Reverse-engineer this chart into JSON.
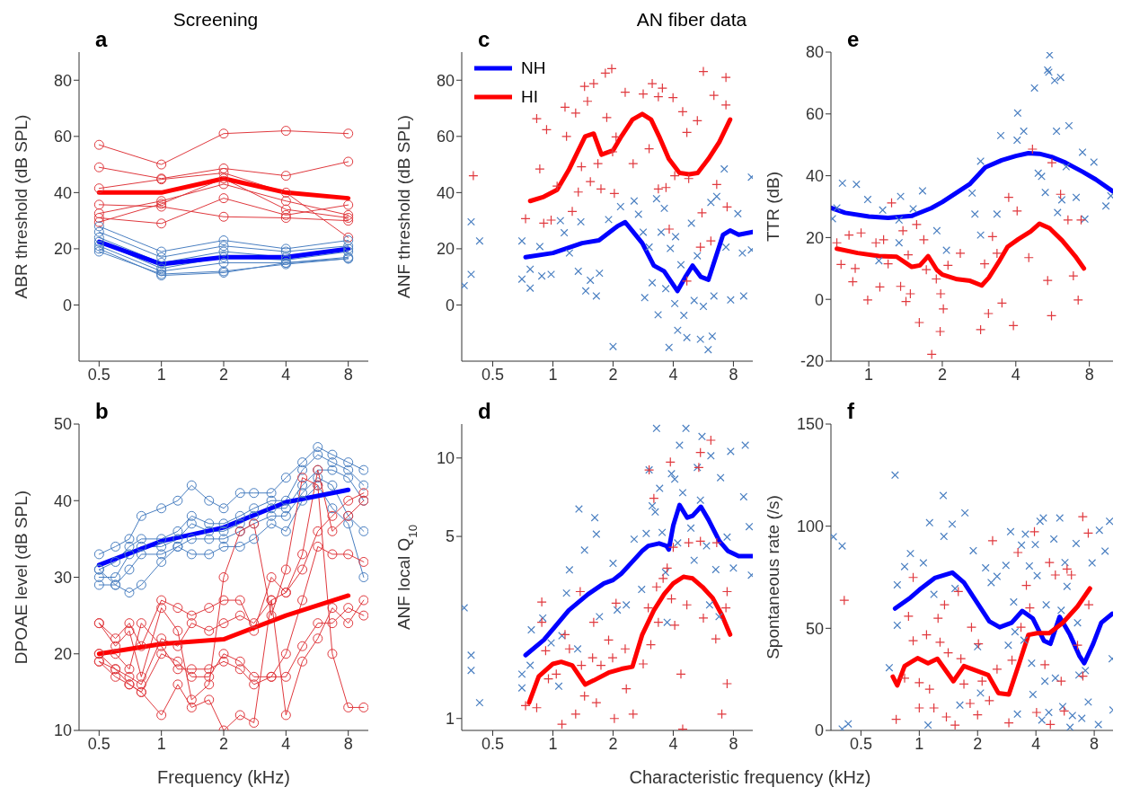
{
  "chart_data": [
    {
      "type": "line",
      "title": "a",
      "annotations": [
        "Screening"
      ],
      "ylabel": "ABR threshold (dB SPL)",
      "log": "x",
      "marker": "circle",
      "xlim": [
        0.4,
        10
      ],
      "xticks": [
        0.5,
        1,
        2,
        4,
        8
      ],
      "ylim": [
        -20,
        90
      ],
      "yticks": [
        0,
        20,
        40,
        60,
        80
      ],
      "x": [
        0.5,
        1,
        2,
        4,
        8
      ],
      "series": [
        {
          "color": "#e0393e",
          "values": [
            57,
            50,
            61,
            62,
            61
          ]
        },
        {
          "color": "#e0393e",
          "values": [
            49,
            45,
            48.6,
            46,
            51
          ]
        },
        {
          "color": "#e0393e",
          "values": [
            41.5,
            44.7,
            47,
            40,
            24
          ]
        },
        {
          "color": "#e0393e",
          "values": [
            35.7,
            35,
            31.4,
            31,
            30
          ]
        },
        {
          "color": "#e0393e",
          "values": [
            32.6,
            37,
            43,
            37,
            32
          ]
        },
        {
          "color": "#e0393e",
          "values": [
            31,
            29,
            38,
            32,
            35.6
          ]
        },
        {
          "color": "#e0393e",
          "values": [
            29.5,
            36,
            45,
            34,
            31
          ]
        },
        {
          "color": "#4a7fc1",
          "values": [
            28,
            19,
            23,
            20,
            23
          ]
        },
        {
          "color": "#4a7fc1",
          "values": [
            26,
            17,
            21,
            19,
            21
          ]
        },
        {
          "color": "#4a7fc1",
          "values": [
            24,
            15,
            19,
            17,
            20
          ]
        },
        {
          "color": "#4a7fc1",
          "values": [
            22.5,
            13,
            17,
            16,
            19
          ]
        },
        {
          "color": "#4a7fc1",
          "values": [
            21,
            12,
            15,
            15,
            17
          ]
        },
        {
          "color": "#4a7fc1",
          "values": [
            19,
            11,
            12,
            14.5,
            16.5
          ]
        },
        {
          "color": "#4a7fc1",
          "values": [
            20,
            10.5,
            11.5,
            15,
            16.5
          ]
        },
        {
          "color": "#ff0000",
          "marker": "none",
          "values": [
            40,
            40,
            45,
            40,
            38
          ]
        },
        {
          "color": "#0000ff",
          "marker": "none",
          "values": [
            22.5,
            14.5,
            17,
            17,
            20
          ]
        }
      ]
    },
    {
      "type": "line",
      "title": "b",
      "xlabel": "Frequency (kHz)",
      "ylabel": "DPOAE level (dB SPL)",
      "log": "x",
      "marker": "circle",
      "xlim": [
        0.4,
        10
      ],
      "xticks": [
        0.5,
        1,
        2,
        4,
        8
      ],
      "ylim": [
        10,
        50
      ],
      "yticks": [
        10,
        20,
        30,
        40,
        50
      ],
      "x": [
        0.5,
        0.6,
        0.7,
        0.8,
        1,
        1.2,
        1.4,
        1.7,
        2,
        2.4,
        2.8,
        3.4,
        4,
        4.8,
        5.7,
        6.7,
        8,
        9.5
      ],
      "series": [
        {
          "color": "#4a7fc1",
          "values": [
            33,
            34,
            35,
            38,
            39,
            40,
            42,
            40,
            39,
            41,
            41,
            41,
            43,
            45,
            47,
            46,
            45,
            44
          ]
        },
        {
          "color": "#4a7fc1",
          "values": [
            31,
            32,
            34,
            35,
            35,
            36,
            38,
            37,
            37,
            38,
            39,
            40,
            40,
            44,
            46,
            45,
            44,
            42
          ]
        },
        {
          "color": "#4a7fc1",
          "values": [
            30,
            30,
            33,
            34,
            34,
            35,
            37,
            36,
            36,
            37,
            38,
            39,
            39,
            42,
            44,
            44,
            43,
            40
          ]
        },
        {
          "color": "#4a7fc1",
          "values": [
            29,
            29,
            31,
            33,
            33,
            34,
            35,
            35,
            35,
            36,
            37,
            38,
            38,
            41,
            43,
            42,
            38,
            36
          ]
        },
        {
          "color": "#4a7fc1",
          "values": [
            31,
            29,
            28,
            29,
            32,
            34,
            33,
            33,
            34,
            34,
            35,
            37,
            36,
            40,
            42,
            39,
            37,
            30
          ]
        },
        {
          "color": "#e0393e",
          "values": [
            24,
            22,
            24,
            21,
            27,
            26,
            25,
            26,
            27,
            27,
            23,
            30,
            28,
            33,
            44,
            36,
            38,
            40
          ]
        },
        {
          "color": "#e0393e",
          "values": [
            20,
            18,
            17,
            16,
            22,
            21,
            24,
            23,
            24,
            25,
            24,
            27,
            28,
            31,
            36,
            38,
            40,
            41
          ]
        },
        {
          "color": "#e0393e",
          "values": [
            19,
            17,
            16,
            15,
            20,
            19,
            17,
            17,
            20,
            19,
            17,
            17,
            20,
            27,
            34,
            33,
            33,
            32
          ]
        },
        {
          "color": "#e0393e",
          "values": [
            20,
            20,
            18,
            24,
            21,
            18,
            18,
            18,
            19,
            18,
            16,
            17,
            17,
            21,
            24,
            24,
            26,
            25
          ]
        },
        {
          "color": "#e0393e",
          "values": [
            19,
            18,
            16,
            15,
            12,
            16,
            13,
            14,
            10,
            12,
            11,
            27,
            12,
            19,
            22,
            26,
            24,
            27
          ]
        },
        {
          "color": "#e0393e",
          "values": [
            24,
            21,
            23,
            17,
            26,
            23,
            14,
            16,
            30,
            36,
            37,
            25,
            31,
            43,
            42,
            20,
            13,
            13
          ]
        },
        {
          "color": "#0000ff",
          "marker": "none",
          "x": [
            0.5,
            1,
            2,
            4,
            8
          ],
          "values": [
            31.6,
            34.7,
            36.5,
            39.8,
            41.4
          ]
        },
        {
          "color": "#ff0000",
          "marker": "none",
          "x": [
            0.5,
            1,
            2,
            4,
            8
          ],
          "values": [
            20,
            21.3,
            21.9,
            25,
            27.6
          ]
        }
      ]
    },
    {
      "type": "scatter",
      "title": "c",
      "annotations": [
        "AN fiber data"
      ],
      "ylabel": "ANF threshold (dB SPL)",
      "log": "x",
      "legend": "top left",
      "xlim": [
        0.35,
        10
      ],
      "xticks": [
        0.5,
        1,
        2,
        4,
        8
      ],
      "ylim": [
        -20,
        90
      ],
      "yticks": [
        0,
        20,
        40,
        60,
        80
      ],
      "series": [
        {
          "color": "#4a7fc1",
          "marker": "x",
          "x": [
            0.36,
            0.39,
            0.39,
            0.43,
            0.7,
            0.7,
            0.77,
            0.77,
            0.86,
            0.88,
            0.98,
            1.09,
            1.14,
            1.21,
            1.34,
            1.38,
            1.46,
            1.54,
            1.65,
            1.71,
            1.9,
            2.0,
            2.18,
            2.55,
            2.68,
            2.83,
            2.88,
            3.03,
            3.14,
            3.3,
            3.36,
            3.48,
            3.61,
            3.67,
            3.81,
            3.87,
            4.07,
            4.11,
            4.21,
            4.37,
            4.52,
            4.68,
            4.93,
            5.09,
            5.28,
            5.47,
            5.66,
            5.98,
            6.17,
            6.27,
            6.39,
            6.6,
            7.2,
            7.34,
            7.75,
            8.42,
            8.87,
            9.0,
            9.84,
            9.84
          ],
          "values": [
            6.9,
            29.6,
            10.9,
            22.8,
            22.8,
            9.2,
            12.7,
            6,
            20.8,
            10.3,
            10.9,
            30,
            25.7,
            18.5,
            12,
            29.6,
            5,
            8.8,
            3.2,
            11.3,
            30.4,
            -14.8,
            35,
            37,
            32.3,
            25.9,
            2.6,
            20.6,
            7.9,
            37.8,
            -3.5,
            25.9,
            34.4,
            5.8,
            -15.1,
            20.1,
            0.5,
            24.3,
            -9,
            14.3,
            -3.7,
            -11.6,
            29.1,
            1.6,
            17.5,
            -12.2,
            -0.5,
            -15.9,
            36.5,
            -11.1,
            3.2,
            38.6,
            48.4,
            20.6,
            1.8,
            32.5,
            18.5,
            3.2,
            45.5,
            19.6
          ]
        },
        {
          "color": "#e0393e",
          "marker": "cross",
          "x": [
            0.4,
            0.73,
            0.83,
            0.86,
            0.9,
            0.93,
            0.98,
            1.05,
            1.15,
            1.17,
            1.25,
            1.3,
            1.34,
            1.39,
            1.44,
            1.49,
            1.54,
            1.6,
            1.68,
            1.74,
            1.83,
            1.86,
            1.97,
            1.99,
            2.03,
            2.07,
            2.3,
            2.52,
            2.83,
            3.03,
            3.14,
            3.37,
            3.37,
            3.53,
            3.68,
            3.82,
            3.99,
            4.07,
            4.46,
            4.68,
            4.68,
            4.78,
            5.28,
            5.47,
            5.57,
            5.66,
            6.17,
            6.39,
            6.6,
            7.34,
            7.34,
            7.44
          ],
          "values": [
            46,
            30.7,
            66.3,
            48.4,
            29.1,
            62.4,
            30.2,
            42.3,
            70.4,
            60,
            33.3,
            68.3,
            40.2,
            49.2,
            77.8,
            72.5,
            43.9,
            78.8,
            50.3,
            41.3,
            82.5,
            66.7,
            84.1,
            54.5,
            39.7,
            59.8,
            75.7,
            50.3,
            75.1,
            55.6,
            78.8,
            74.1,
            41.3,
            77.2,
            41.8,
            27,
            73.8,
            46,
            68.8,
            61.4,
            8.5,
            45,
            65.6,
            20.6,
            32.8,
            83.1,
            22.8,
            74.6,
            42.9,
            81,
            71.2,
            34.9
          ]
        },
        {
          "type": "line",
          "name": "NH",
          "color": "#0000ff",
          "x": [
            0.73,
            1,
            1.4,
            1.7,
            2.1,
            2.3,
            2.8,
            3.2,
            3.6,
            4.2,
            4.6,
            5.0,
            5.5,
            6.0,
            7.1,
            7.7,
            8.5,
            10
          ],
          "values": [
            17,
            18.5,
            22,
            23,
            28,
            29.5,
            22,
            14,
            12,
            5,
            10,
            14,
            10,
            9,
            25,
            26.5,
            25,
            26
          ]
        },
        {
          "type": "line",
          "name": "HI",
          "color": "#ff0000",
          "x": [
            0.77,
            0.9,
            1.05,
            1.2,
            1.45,
            1.6,
            1.75,
            2.0,
            2.2,
            2.5,
            2.8,
            3.1,
            3.4,
            3.8,
            4.3,
            4.8,
            5.3,
            6.0,
            6.8,
            7.7
          ],
          "values": [
            37,
            38.5,
            41,
            48,
            60,
            61,
            53.5,
            55,
            60,
            66,
            68,
            66,
            60,
            52,
            47,
            46.5,
            47,
            52,
            58,
            66
          ]
        }
      ]
    },
    {
      "type": "scatter",
      "title": "d",
      "xlabel": "Characteristic frequency (kHz)",
      "ylabel": "ANF local Q$_{10}$",
      "log": "xy",
      "xlim": [
        0.35,
        10
      ],
      "xticks": [
        0.5,
        1,
        2,
        4,
        8
      ],
      "ylim": [
        0.9,
        13.5
      ],
      "yticks": [
        1,
        5,
        10
      ],
      "series": [
        {
          "color": "#4a7fc1",
          "marker": "x",
          "x": [
            0.36,
            0.39,
            0.39,
            0.43,
            0.7,
            0.7,
            0.77,
            0.78,
            0.89,
            0.98,
            1.07,
            1.11,
            1.17,
            1.21,
            1.33,
            1.35,
            1.44,
            1.62,
            1.65,
            1.71,
            2.0,
            2.1,
            2.33,
            2.55,
            2.78,
            2.93,
            3.03,
            3.14,
            3.25,
            3.3,
            3.42,
            3.52,
            3.66,
            3.73,
            3.92,
            4.07,
            4.21,
            4.3,
            4.46,
            4.63,
            4.9,
            5.09,
            5.28,
            5.47,
            5.57,
            5.87,
            6.08,
            6.17,
            6.53,
            6.78,
            6.9,
            7.44,
            7.75,
            8.0,
            9.0,
            9.17,
            9.6,
            9.84
          ],
          "values": [
            2.66,
            1.75,
            1.53,
            1.15,
            1.48,
            1.31,
            1.6,
            2.19,
            2.43,
            1.95,
            1.33,
            2.08,
            3.03,
            3.72,
            1.85,
            6.37,
            4.43,
            5.9,
            5.1,
            2.46,
            3.94,
            2.61,
            2.73,
            4.88,
            3.13,
            5.13,
            9.0,
            6.55,
            6.21,
            13,
            7.65,
            5.18,
            3.64,
            2.34,
            8.7,
            8.3,
            4.72,
            11.2,
            7.36,
            13,
            5.38,
            4.05,
            9.2,
            6.89,
            12.1,
            4.6,
            2.73,
            10.2,
            3.73,
            2.46,
            8.4,
            4.97,
            10.6,
            3.78,
            7.1,
            11.2,
            5.45,
            3.55
          ]
        },
        {
          "color": "#e0393e",
          "marker": "cross",
          "x": [
            0.73,
            0.83,
            0.88,
            0.88,
            0.92,
            0.95,
            1.04,
            1.11,
            1.15,
            1.21,
            1.3,
            1.37,
            1.39,
            1.44,
            1.58,
            1.6,
            1.65,
            1.74,
            1.9,
            1.99,
            2.03,
            2.07,
            2.3,
            2.33,
            2.52,
            2.83,
            3.0,
            3.03,
            3.09,
            3.2,
            3.3,
            3.37,
            3.56,
            3.73,
            3.87,
            3.92,
            4.0,
            4.07,
            4.37,
            4.46,
            4.68,
            4.78,
            5.37,
            5.47,
            5.47,
            5.66,
            6.17,
            6.53,
            6.6,
            7.0,
            7.34,
            7.44,
            7.44
          ],
          "values": [
            1.12,
            1.1,
            2.8,
            2.34,
            1.82,
            1.42,
            1.48,
            0.95,
            2.1,
            1.85,
            1.04,
            3.07,
            1.6,
            1.22,
            1.71,
            2.34,
            1.15,
            1.6,
            2.0,
            1.71,
            1.0,
            2.77,
            1.85,
            1.3,
            1.04,
            1.62,
            2.66,
            9.0,
            1.92,
            7.0,
            3.2,
            2.34,
            3.45,
            3.78,
            9.65,
            2.88,
            4.54,
            2.28,
            1.48,
            0.91,
            2.73,
            4.73,
            9.2,
            10.5,
            4.79,
            2.43,
            11.7,
            2.02,
            4.73,
            1.04,
            2.66,
            3.07,
            1.36
          ]
        },
        {
          "type": "line",
          "color": "#0000ff",
          "x": [
            0.73,
            0.9,
            1.0,
            1.2,
            1.5,
            1.8,
            2.0,
            2.2,
            2.5,
            2.8,
            3.0,
            3.4,
            3.7,
            3.8,
            4.0,
            4.3,
            4.7,
            5.0,
            5.5,
            6.0,
            6.8,
            7.5,
            8.5,
            10
          ],
          "values": [
            1.75,
            2.0,
            2.2,
            2.6,
            3.0,
            3.3,
            3.4,
            3.6,
            4.0,
            4.4,
            4.6,
            4.7,
            4.6,
            4.45,
            5.5,
            6.6,
            5.9,
            6.0,
            6.5,
            5.8,
            4.8,
            4.4,
            4.2,
            4.2
          ]
        },
        {
          "type": "line",
          "color": "#ff0000",
          "x": [
            0.76,
            0.85,
            1.0,
            1.1,
            1.25,
            1.45,
            1.6,
            1.9,
            2.2,
            2.5,
            2.8,
            3.2,
            3.6,
            4.0,
            4.5,
            5.0,
            5.6,
            6.3,
            7.0,
            7.7
          ],
          "values": [
            1.15,
            1.45,
            1.62,
            1.65,
            1.6,
            1.35,
            1.4,
            1.5,
            1.55,
            1.58,
            2.1,
            2.6,
            3.0,
            3.3,
            3.5,
            3.45,
            3.2,
            2.9,
            2.5,
            2.1
          ]
        }
      ]
    },
    {
      "type": "scatter",
      "title": "e",
      "ylabel": "TTR (dB)",
      "log": "x",
      "xlim": [
        0.7,
        10
      ],
      "xticks": [
        1,
        2,
        4,
        8
      ],
      "ylim": [
        -20,
        80
      ],
      "yticks": [
        -20,
        0,
        20,
        40,
        60,
        80
      ],
      "series": [
        {
          "color": "#4a7fc1",
          "marker": "x",
          "x": [
            0.71,
            0.74,
            0.78,
            0.89,
            0.99,
            1.1,
            1.14,
            1.33,
            1.35,
            1.33,
            1.52,
            1.66,
            1.9,
            2.08,
            2.65,
            2.72,
            2.87,
            2.87,
            3.35,
            3.47,
            4.07,
            4.05,
            4.31,
            4.77,
            4.94,
            5.1,
            5.28,
            5.4,
            5.5,
            5.46,
            5.77,
            5.87,
            5.93,
            6.1,
            6.17,
            6.43,
            6.6,
            7.07,
            7.5,
            7.67,
            8.35,
            9.35,
            9.8
          ],
          "values": [
            26.1,
            29.6,
            37.6,
            37.2,
            32.3,
            12.5,
            28.9,
            25.7,
            33.3,
            18.3,
            29.3,
            35.1,
            22.2,
            15.9,
            34.4,
            27.6,
            20.8,
            44.7,
            27.6,
            53,
            60.3,
            51.5,
            54.4,
            68.4,
            40.8,
            39.8,
            34.6,
            74.2,
            79.1,
            73.5,
            70.8,
            54.4,
            28.1,
            71.8,
            32.2,
            42.9,
            56.2,
            33,
            47.6,
            26,
            44.4,
            30.2,
            33.5
          ]
        },
        {
          "color": "#e0393e",
          "marker": "cross",
          "x": [
            0.74,
            0.77,
            0.83,
            0.86,
            0.88,
            0.93,
            0.99,
            1.07,
            1.11,
            1.15,
            1.2,
            1.24,
            1.35,
            1.38,
            1.42,
            1.45,
            1.48,
            1.57,
            1.61,
            1.68,
            1.72,
            1.81,
            1.89,
            1.96,
            1.97,
            2.02,
            2.11,
            2.37,
            2.87,
            2.98,
            3.09,
            3.21,
            3.35,
            3.51,
            3.74,
            3.91,
            4.05,
            4.52,
            4.68,
            5.4,
            5.6,
            5.62,
            6.1,
            6.54,
            6.88,
            7.2,
            7.4
          ],
          "values": [
            18.3,
            11.3,
            20.8,
            5.7,
            10,
            21.5,
            -0.2,
            18.3,
            4,
            19.3,
            11.5,
            31.2,
            4.2,
            22.2,
            -0.7,
            14.4,
            1.8,
            24.2,
            -7.5,
            19.3,
            9.6,
            -17.8,
            6.6,
            -10.4,
            1.8,
            -3.1,
            11,
            14.9,
            -9.8,
            11.5,
            -4.6,
            20.3,
            14.9,
            -1.2,
            33,
            -8.5,
            28.6,
            13.5,
            48.6,
            6.1,
            -5.3,
            44.2,
            34,
            25.7,
            7.6,
            -0.2,
            25.7
          ]
        },
        {
          "type": "line",
          "color": "#0000ff",
          "x": [
            0.7,
            0.8,
            1.0,
            1.2,
            1.5,
            1.8,
            2.0,
            2.6,
            3.0,
            3.5,
            4.0,
            4.5,
            5.0,
            5.6,
            6.4,
            7.5,
            8.5,
            10
          ],
          "values": [
            29.6,
            28,
            26.8,
            26.4,
            27,
            29.5,
            31.5,
            37.4,
            42.7,
            45,
            46.4,
            47.3,
            47.1,
            46.1,
            44.2,
            41.3,
            38.8,
            34.9
          ]
        },
        {
          "type": "line",
          "color": "#ff0000",
          "x": [
            0.74,
            0.9,
            1.1,
            1.3,
            1.5,
            1.62,
            1.75,
            1.9,
            2.0,
            2.3,
            2.6,
            2.9,
            3.1,
            3.4,
            3.7,
            4.1,
            4.6,
            5.0,
            5.5,
            6.2,
            7.0,
            7.6
          ],
          "values": [
            16.4,
            15,
            14,
            13.8,
            10.5,
            11,
            14,
            9.5,
            8,
            6.5,
            6,
            4.5,
            7,
            12,
            17,
            19.5,
            22,
            24.5,
            23,
            19,
            14,
            10
          ]
        }
      ]
    },
    {
      "type": "scatter",
      "title": "f",
      "ylabel": "Spontaneous rate (/s)",
      "log": "x",
      "xlim": [
        0.35,
        10
      ],
      "xticks": [
        0.5,
        1,
        2,
        4,
        8
      ],
      "ylim": [
        0,
        150
      ],
      "yticks": [
        0,
        50,
        100,
        150
      ],
      "series": [
        {
          "color": "#4a7fc1",
          "marker": "x",
          "x": [
            0.36,
            0.4,
            0.4,
            0.43,
            0.7,
            0.75,
            0.77,
            0.77,
            0.84,
            0.9,
            1.05,
            1.11,
            1.13,
            1.19,
            1.33,
            1.34,
            1.48,
            1.53,
            1.62,
            1.72,
            1.9,
            2.0,
            2.07,
            2.2,
            2.35,
            2.52,
            2.8,
            2.88,
            2.96,
            3.07,
            3.12,
            3.21,
            3.37,
            3.47,
            3.53,
            3.7,
            3.8,
            3.86,
            3.97,
            4.06,
            4.2,
            4.29,
            4.37,
            4.45,
            4.52,
            4.66,
            4.95,
            5.04,
            5.31,
            5.4,
            5.5,
            5.65,
            5.79,
            6.0,
            6.17,
            6.45,
            6.56,
            6.67,
            6.9,
            7.2,
            7.45,
            7.8,
            8.4,
            8.5,
            9.1,
            9.6,
            9.9,
            10
          ],
          "values": [
            94.8,
            90.3,
            0.7,
            3.2,
            30.7,
            125,
            51.5,
            71.3,
            80.2,
            86.6,
            82,
            2.6,
            101.7,
            66.6,
            115,
            95,
            101,
            69.5,
            12.4,
            106.5,
            88,
            41,
            18.3,
            79.6,
            72.4,
            75.4,
            80.8,
            41.7,
            97.3,
            62.9,
            48.3,
            8,
            90.7,
            44.2,
            96.1,
            80.5,
            32.9,
            17.6,
            91,
            75.8,
            102.4,
            5.1,
            104,
            24.1,
            61.5,
            8.8,
            93.7,
            25.6,
            104,
            58.8,
            11.7,
            82.2,
            70.5,
            1.5,
            7.3,
            91.5,
            52.7,
            27.1,
            5.9,
            29.3,
            13.9,
            82,
            2.9,
            98,
            87.8,
            102.4,
            35.1,
            10
          ]
        },
        {
          "color": "#e0393e",
          "marker": "cross",
          "x": [
            0.41,
            0.76,
            0.84,
            0.88,
            0.93,
            0.93,
            1.0,
            1.0,
            1.09,
            1.13,
            1.19,
            1.25,
            1.28,
            1.35,
            1.38,
            1.41,
            1.53,
            1.59,
            1.64,
            1.7,
            1.83,
            1.86,
            2.0,
            2.02,
            2.11,
            2.3,
            2.39,
            2.52,
            2.9,
            3.01,
            3.23,
            3.35,
            3.57,
            3.72,
            3.93,
            4.03,
            4.45,
            4.7,
            4.75,
            5.04,
            5.4,
            5.6,
            5.79,
            6.1,
            6.56,
            6.98,
            6.99,
            7.45,
            7.5
          ],
          "values": [
            63.7,
            5.4,
            25.6,
            55.9,
            74.9,
            43.9,
            23.4,
            11,
            46.8,
            20.2,
            11,
            54.9,
            43.2,
            61.5,
            6.6,
            38,
            2.6,
            68,
            35.1,
            22.7,
            13.2,
            50.5,
            7.6,
            42.4,
            24.1,
            14.6,
            92.9,
            30,
            3.7,
            34.4,
            87.1,
            50.5,
            71,
            60,
            97.3,
            8.8,
            32.2,
            82.2,
            2.9,
            76.1,
            24.1,
            9.5,
            79,
            76.1,
            41.7,
            104.6,
            26.6,
            96.6,
            61.5
          ]
        },
        {
          "type": "line",
          "color": "#0000ff",
          "x": [
            0.75,
            0.9,
            1.0,
            1.2,
            1.48,
            1.7,
            2.0,
            2.3,
            2.6,
            3.0,
            3.4,
            3.85,
            4.4,
            4.75,
            5.3,
            6.0,
            6.7,
            7.1,
            7.9,
            8.7,
            9.9
          ],
          "values": [
            59.7,
            65,
            68.8,
            74.6,
            77.3,
            72.4,
            62.2,
            53.4,
            50.5,
            52.7,
            58.5,
            54.9,
            43.9,
            42.4,
            55.6,
            46.8,
            36.6,
            32.9,
            42.4,
            52.7,
            57.1
          ]
        },
        {
          "type": "line",
          "color": "#ff0000",
          "x": [
            0.73,
            0.77,
            0.84,
            0.98,
            1.11,
            1.24,
            1.5,
            1.7,
            2.27,
            2.56,
            2.9,
            3.28,
            3.66,
            4.06,
            4.69,
            5.5,
            6.56,
            7.6
          ],
          "values": [
            26.3,
            22,
            31.5,
            35.4,
            32.9,
            35.1,
            24.1,
            31.5,
            27.1,
            18.3,
            17.6,
            32.9,
            46.8,
            47.6,
            47.6,
            52.7,
            60.7,
            69.5
          ]
        }
      ]
    }
  ]
}
